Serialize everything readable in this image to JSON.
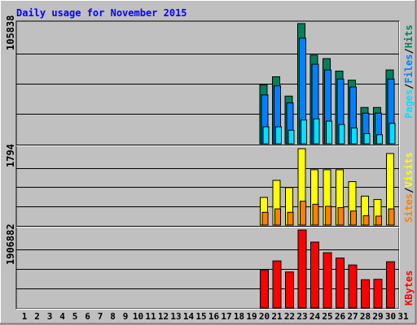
{
  "title": "Daily usage for November 2015",
  "colors": {
    "background": "#c0c0c0",
    "plot": "#c0c0c0",
    "title": "#0000ff",
    "hits": "#00805c",
    "files": "#0080ff",
    "pages": "#00e0ff",
    "visits": "#ffff00",
    "sites": "#ff8000",
    "kbytes": "#ff0000"
  },
  "chart_data": [
    {
      "type": "bar",
      "title": "Daily usage for November 2015",
      "categories": [
        "1",
        "2",
        "3",
        "4",
        "5",
        "6",
        "7",
        "8",
        "9",
        "10",
        "11",
        "12",
        "13",
        "14",
        "15",
        "16",
        "17",
        "18",
        "19",
        "20",
        "21",
        "22",
        "23",
        "24",
        "25",
        "26",
        "27",
        "28",
        "29",
        "30",
        "31"
      ],
      "ymax_label": "105838",
      "ylim": [
        0,
        105838
      ],
      "legend": [
        "Pages",
        "Files",
        "Hits"
      ],
      "grid": true,
      "series": [
        {
          "name": "Hits",
          "values": [
            null,
            null,
            null,
            null,
            null,
            null,
            null,
            null,
            null,
            null,
            null,
            null,
            null,
            null,
            null,
            null,
            null,
            null,
            null,
            52000,
            59000,
            42000,
            105838,
            78000,
            75000,
            64000,
            56000,
            32000,
            32000,
            65000,
            null
          ]
        },
        {
          "name": "Files",
          "values": [
            null,
            null,
            null,
            null,
            null,
            null,
            null,
            null,
            null,
            null,
            null,
            null,
            null,
            null,
            null,
            null,
            null,
            null,
            null,
            43000,
            51000,
            36000,
            93000,
            70000,
            65000,
            57000,
            50000,
            27000,
            27000,
            57000,
            null
          ]
        },
        {
          "name": "Pages",
          "values": [
            null,
            null,
            null,
            null,
            null,
            null,
            null,
            null,
            null,
            null,
            null,
            null,
            null,
            null,
            null,
            null,
            null,
            null,
            null,
            15000,
            15000,
            12000,
            21000,
            22000,
            20000,
            17000,
            14000,
            9000,
            8000,
            18000,
            null
          ]
        }
      ]
    },
    {
      "type": "bar",
      "categories": [
        "1",
        "2",
        "3",
        "4",
        "5",
        "6",
        "7",
        "8",
        "9",
        "10",
        "11",
        "12",
        "13",
        "14",
        "15",
        "16",
        "17",
        "18",
        "19",
        "20",
        "21",
        "22",
        "23",
        "24",
        "25",
        "26",
        "27",
        "28",
        "29",
        "30",
        "31"
      ],
      "ymax_label": "1794",
      "ylim": [
        0,
        1794
      ],
      "legend": [
        "Sites",
        "Visits"
      ],
      "grid": true,
      "series": [
        {
          "name": "Visits",
          "values": [
            null,
            null,
            null,
            null,
            null,
            null,
            null,
            null,
            null,
            null,
            null,
            null,
            null,
            null,
            null,
            null,
            null,
            null,
            null,
            650,
            1050,
            880,
            1794,
            1300,
            1300,
            1300,
            1020,
            680,
            600,
            1680,
            null
          ]
        },
        {
          "name": "Sites",
          "values": [
            null,
            null,
            null,
            null,
            null,
            null,
            null,
            null,
            null,
            null,
            null,
            null,
            null,
            null,
            null,
            null,
            null,
            null,
            null,
            300,
            380,
            300,
            560,
            490,
            440,
            410,
            330,
            220,
            210,
            380,
            null
          ]
        }
      ]
    },
    {
      "type": "bar",
      "categories": [
        "1",
        "2",
        "3",
        "4",
        "5",
        "6",
        "7",
        "8",
        "9",
        "10",
        "11",
        "12",
        "13",
        "14",
        "15",
        "16",
        "17",
        "18",
        "19",
        "20",
        "21",
        "22",
        "23",
        "24",
        "25",
        "26",
        "27",
        "28",
        "29",
        "30",
        "31"
      ],
      "ymax_label": "1906882",
      "ylim": [
        0,
        1906882
      ],
      "legend": [
        "KBytes"
      ],
      "grid": true,
      "series": [
        {
          "name": "KBytes",
          "values": [
            null,
            null,
            null,
            null,
            null,
            null,
            null,
            null,
            null,
            null,
            null,
            null,
            null,
            null,
            null,
            null,
            null,
            null,
            null,
            920000,
            1150000,
            880000,
            1906882,
            1610000,
            1350000,
            1220000,
            1050000,
            690000,
            700000,
            1130000,
            null
          ]
        }
      ]
    }
  ]
}
